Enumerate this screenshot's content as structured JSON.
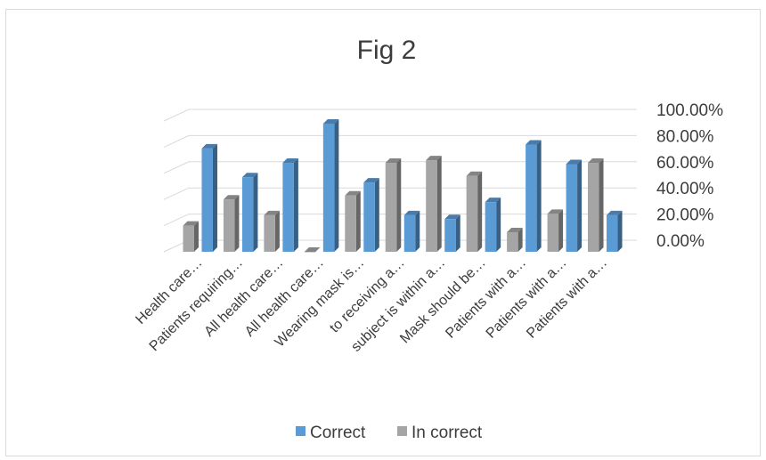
{
  "chart_data": {
    "type": "bar",
    "title": "Fig 2",
    "categories": [
      "Health care…",
      "Patients requiring…",
      "All health care…",
      "All health care…",
      "Wearing mask is…",
      "to receiving a…",
      "subject is within a…",
      "Mask should be…",
      "Patients with a…",
      "Patients with a…",
      "Patients with a…"
    ],
    "series": [
      {
        "name": "Correct",
        "color": "#5b9bd5",
        "values": [
          79,
          57,
          68,
          98,
          53,
          28,
          25,
          38,
          82,
          67,
          28
        ]
      },
      {
        "name": "In correct",
        "color": "#a5a5a5",
        "values": [
          20,
          40,
          28,
          0,
          43,
          68,
          70,
          58,
          15,
          29,
          68
        ]
      }
    ],
    "yticks": [
      "0.00%",
      "20.00%",
      "40.00%",
      "60.00%",
      "80.00%",
      "100.00%"
    ],
    "ylim": [
      0,
      100
    ],
    "grid": true,
    "legend_position": "bottom",
    "three_d": true
  }
}
